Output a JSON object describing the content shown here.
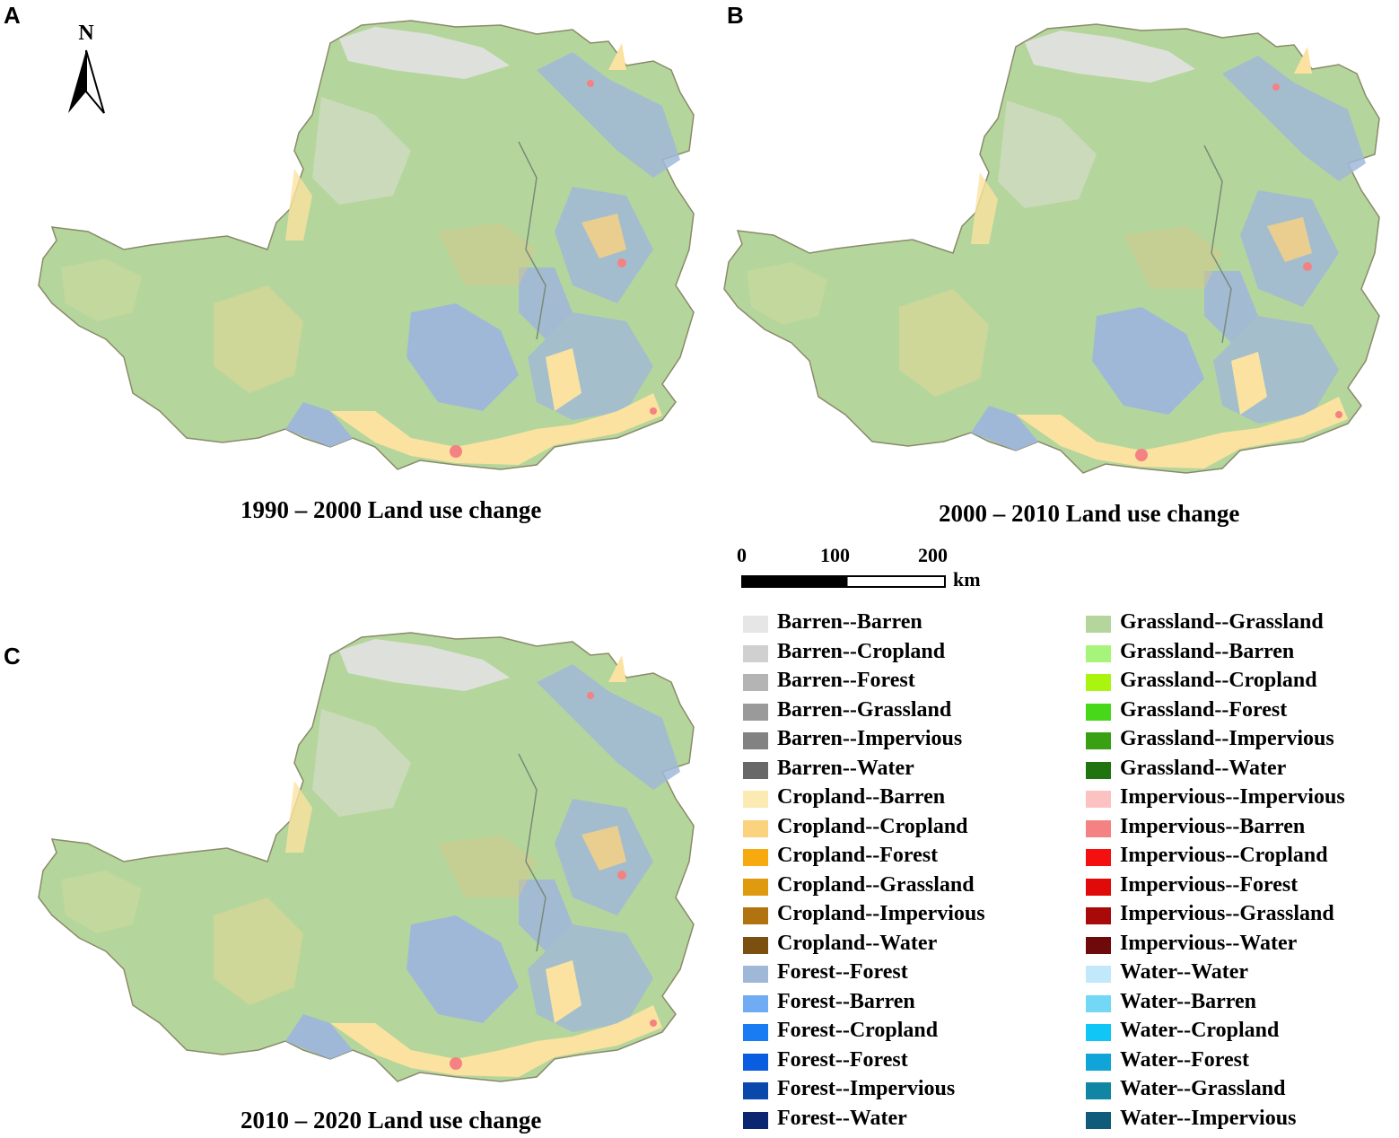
{
  "panels": [
    {
      "letter": "A",
      "caption": "1990 – 2000 Land use change"
    },
    {
      "letter": "B",
      "caption": "2000 – 2010 Land use change"
    },
    {
      "letter": "C",
      "caption": "2010 – 2020 Land use change"
    }
  ],
  "north_arrow": {
    "label": "N"
  },
  "scale_bar": {
    "ticks": [
      "0",
      "100",
      "200"
    ],
    "unit": "km"
  },
  "legend": {
    "column1": [
      {
        "label": "Barren--Barren",
        "color": "#e6e6e6"
      },
      {
        "label": "Barren--Cropland",
        "color": "#d0d0d0"
      },
      {
        "label": "Barren--Forest",
        "color": "#b4b4b4"
      },
      {
        "label": "Barren--Grassland",
        "color": "#9a9a9a"
      },
      {
        "label": "Barren--Impervious",
        "color": "#828282"
      },
      {
        "label": "Barren--Water",
        "color": "#686868"
      },
      {
        "label": "Cropland--Barren",
        "color": "#fbeab2"
      },
      {
        "label": "Cropland--Cropland",
        "color": "#fbd27e"
      },
      {
        "label": "Cropland--Forest",
        "color": "#f6aa10"
      },
      {
        "label": "Cropland--Grassland",
        "color": "#e09a10"
      },
      {
        "label": "Cropland--Impervious",
        "color": "#b07310"
      },
      {
        "label": "Cropland--Water",
        "color": "#7a4f10"
      },
      {
        "label": "Forest--Forest",
        "color": "#a0b8d8"
      },
      {
        "label": "Forest--Barren",
        "color": "#70acf4"
      },
      {
        "label": "Forest--Cropland",
        "color": "#1a7cf2"
      },
      {
        "label": "Forest--Forest",
        "color": "#0a5ce0"
      },
      {
        "label": "Forest--Impervious",
        "color": "#0a48ac"
      },
      {
        "label": "Forest--Water",
        "color": "#0a2670"
      }
    ],
    "column2": [
      {
        "label": "Grassland--Grassland",
        "color": "#b4d69c"
      },
      {
        "label": "Grassland--Barren",
        "color": "#a6f57a"
      },
      {
        "label": "Grassland--Cropland",
        "color": "#aaf510"
      },
      {
        "label": "Grassland--Forest",
        "color": "#48d81a"
      },
      {
        "label": "Grassland--Impervious",
        "color": "#38a012"
      },
      {
        "label": "Grassland--Water",
        "color": "#1f7410"
      },
      {
        "label": "Impervious--Impervious",
        "color": "#fcc2c2"
      },
      {
        "label": "Impervious--Barren",
        "color": "#f48282"
      },
      {
        "label": "Impervious--Cropland",
        "color": "#f41010"
      },
      {
        "label": "Impervious--Forest",
        "color": "#e00a0a"
      },
      {
        "label": "Impervious--Grassland",
        "color": "#a80a0a"
      },
      {
        "label": "Impervious--Water",
        "color": "#6e0a0a"
      },
      {
        "label": "Water--Water",
        "color": "#c2e8fb"
      },
      {
        "label": "Water--Barren",
        "color": "#72d8f6"
      },
      {
        "label": "Water--Cropland",
        "color": "#10c6f6"
      },
      {
        "label": "Water--Forest",
        "color": "#10a4d8"
      },
      {
        "label": "Water--Grassland",
        "color": "#1086a4"
      },
      {
        "label": "Water--Impervious",
        "color": "#105a7a"
      }
    ]
  }
}
